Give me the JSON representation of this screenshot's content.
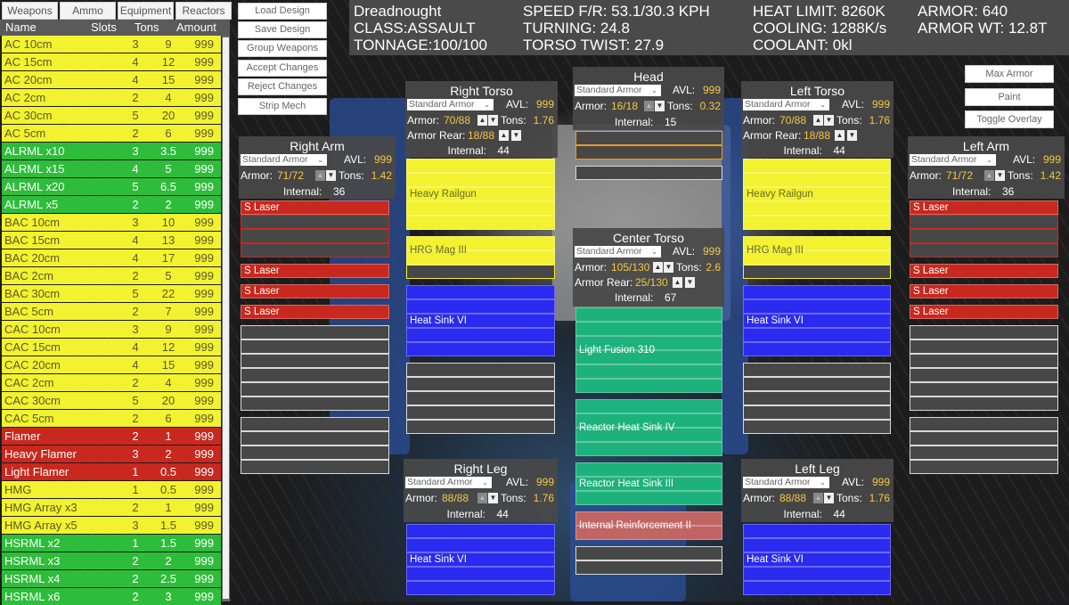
{
  "colors": {
    "ballistic": "#f2f230",
    "missile": "#2ebd3a",
    "energy": "#c8281e",
    "heatsink": "#2a2af0",
    "reactor": "#1db17e",
    "structure": "#c06464",
    "head": "#e8a020",
    "empty": "#d8d8d8",
    "value": "#f5c842"
  },
  "tabs": [
    "Weapons",
    "Ammo",
    "Equipment",
    "Reactors"
  ],
  "list": {
    "columns": [
      "Name",
      "Slots",
      "Tons",
      "Amount"
    ],
    "rows": [
      {
        "name": "AC 10cm",
        "slots": "3",
        "tons": "9",
        "amount": "999",
        "type": "ballistic"
      },
      {
        "name": "AC 15cm",
        "slots": "4",
        "tons": "12",
        "amount": "999",
        "type": "ballistic"
      },
      {
        "name": "AC 20cm",
        "slots": "4",
        "tons": "15",
        "amount": "999",
        "type": "ballistic"
      },
      {
        "name": "AC 2cm",
        "slots": "2",
        "tons": "4",
        "amount": "999",
        "type": "ballistic"
      },
      {
        "name": "AC 30cm",
        "slots": "5",
        "tons": "20",
        "amount": "999",
        "type": "ballistic"
      },
      {
        "name": "AC 5cm",
        "slots": "2",
        "tons": "6",
        "amount": "999",
        "type": "ballistic"
      },
      {
        "name": "ALRML x10",
        "slots": "3",
        "tons": "3.5",
        "amount": "999",
        "type": "missile"
      },
      {
        "name": "ALRML x15",
        "slots": "4",
        "tons": "5",
        "amount": "999",
        "type": "missile"
      },
      {
        "name": "ALRML x20",
        "slots": "5",
        "tons": "6.5",
        "amount": "999",
        "type": "missile"
      },
      {
        "name": "ALRML x5",
        "slots": "2",
        "tons": "2",
        "amount": "999",
        "type": "missile"
      },
      {
        "name": "BAC 10cm",
        "slots": "3",
        "tons": "10",
        "amount": "999",
        "type": "ballistic"
      },
      {
        "name": "BAC 15cm",
        "slots": "4",
        "tons": "13",
        "amount": "999",
        "type": "ballistic"
      },
      {
        "name": "BAC 20cm",
        "slots": "4",
        "tons": "17",
        "amount": "999",
        "type": "ballistic"
      },
      {
        "name": "BAC 2cm",
        "slots": "2",
        "tons": "5",
        "amount": "999",
        "type": "ballistic"
      },
      {
        "name": "BAC 30cm",
        "slots": "5",
        "tons": "22",
        "amount": "999",
        "type": "ballistic"
      },
      {
        "name": "BAC 5cm",
        "slots": "2",
        "tons": "7",
        "amount": "999",
        "type": "ballistic"
      },
      {
        "name": "CAC 10cm",
        "slots": "3",
        "tons": "9",
        "amount": "999",
        "type": "ballistic"
      },
      {
        "name": "CAC 15cm",
        "slots": "4",
        "tons": "12",
        "amount": "999",
        "type": "ballistic"
      },
      {
        "name": "CAC 20cm",
        "slots": "4",
        "tons": "15",
        "amount": "999",
        "type": "ballistic"
      },
      {
        "name": "CAC 2cm",
        "slots": "2",
        "tons": "4",
        "amount": "999",
        "type": "ballistic"
      },
      {
        "name": "CAC 30cm",
        "slots": "5",
        "tons": "20",
        "amount": "999",
        "type": "ballistic"
      },
      {
        "name": "CAC 5cm",
        "slots": "2",
        "tons": "6",
        "amount": "999",
        "type": "ballistic"
      },
      {
        "name": "Flamer",
        "slots": "2",
        "tons": "1",
        "amount": "999",
        "type": "energy"
      },
      {
        "name": "Heavy Flamer",
        "slots": "3",
        "tons": "2",
        "amount": "999",
        "type": "energy"
      },
      {
        "name": "Light Flamer",
        "slots": "1",
        "tons": "0.5",
        "amount": "999",
        "type": "energy"
      },
      {
        "name": "HMG",
        "slots": "1",
        "tons": "0.5",
        "amount": "999",
        "type": "ballistic"
      },
      {
        "name": "HMG Array x3",
        "slots": "2",
        "tons": "1",
        "amount": "999",
        "type": "ballistic"
      },
      {
        "name": "HMG Array x5",
        "slots": "3",
        "tons": "1.5",
        "amount": "999",
        "type": "ballistic"
      },
      {
        "name": "HSRML x2",
        "slots": "1",
        "tons": "1.5",
        "amount": "999",
        "type": "missile"
      },
      {
        "name": "HSRML x3",
        "slots": "2",
        "tons": "2",
        "amount": "999",
        "type": "missile"
      },
      {
        "name": "HSRML x4",
        "slots": "2",
        "tons": "2.5",
        "amount": "999",
        "type": "missile"
      },
      {
        "name": "HSRML x6",
        "slots": "2",
        "tons": "3",
        "amount": "999",
        "type": "missile"
      }
    ]
  },
  "actions": [
    "Load Design",
    "Save Design",
    "Group Weapons",
    "Accept Changes",
    "Reject Changes",
    "Strip Mech"
  ],
  "side_actions": [
    "Max Armor",
    "Paint",
    "Toggle Overlay"
  ],
  "stats": {
    "name": "Dreadnought",
    "class": "CLASS:ASSAULT",
    "tonnage": "TONNAGE:100/100",
    "speed": "SPEED F/R: 53.1/30.3 KPH",
    "turning": "TURNING: 24.8",
    "twist": "TORSO TWIST: 27.9",
    "heat_limit": "HEAT LIMIT: 8260K",
    "cooling": "COOLING: 1288K/s",
    "coolant": "COOLANT: 0kl",
    "armor": "ARMOR: 640",
    "armor_wt": "ARMOR WT: 12.8T"
  },
  "labels": {
    "avl": "AVL:",
    "armor": "Armor:",
    "armor_rear": "Armor Rear:",
    "tons": "Tons:",
    "internal": "Internal:"
  },
  "sections": [
    {
      "id": "right-arm",
      "title": "Right Arm",
      "armor_type": "Standard Armor",
      "avl": "999",
      "armor": "71/72",
      "tons": "1.42",
      "internal": "36",
      "up_enabled": false,
      "groups": [
        {
          "label": "S Laser",
          "type": "energy",
          "slots": 4,
          "filled": 1
        },
        {
          "label": "S Laser",
          "type": "energy",
          "slots": 1,
          "filled": 1
        },
        {
          "label": "S Laser",
          "type": "energy",
          "slots": 1,
          "filled": 1
        },
        {
          "label": "S Laser",
          "type": "energy",
          "slots": 1,
          "filled": 1
        },
        {
          "label": "",
          "type": "empty",
          "slots": 6,
          "filled": 0
        },
        {
          "label": "",
          "type": "empty",
          "slots": 4,
          "filled": 0
        }
      ]
    },
    {
      "id": "right-torso",
      "title": "Right Torso",
      "armor_type": "Standard Armor",
      "avl": "999",
      "armor": "70/88",
      "tons": "1.76",
      "armor_rear": "18/88",
      "internal": "44",
      "up_enabled": true,
      "groups": [
        {
          "label": "Heavy Railgun",
          "type": "ballistic",
          "slots": 5,
          "filled": 5
        },
        {
          "label": "HRG Mag III",
          "type": "ballistic",
          "slots": 3,
          "filled": 2
        },
        {
          "label": "Heat Sink VI",
          "type": "heatsink",
          "slots": 5,
          "filled": 5
        },
        {
          "label": "",
          "type": "empty",
          "slots": 5,
          "filled": 0
        }
      ]
    },
    {
      "id": "head",
      "title": "Head",
      "armor_type": "Standard Armor",
      "avl": "999",
      "armor": "16/18",
      "tons": "0.32",
      "internal": "15",
      "up_enabled": false,
      "groups": [
        {
          "label": "",
          "type": "head",
          "slots": 2,
          "filled": 0
        },
        {
          "label": "",
          "type": "empty",
          "slots": 1,
          "filled": 0
        }
      ]
    },
    {
      "id": "center-torso",
      "title": "Center Torso",
      "armor_type": "Standard Armor",
      "avl": "999",
      "armor": "105/130",
      "tons": "2.6",
      "armor_rear": "25/130",
      "internal": "67",
      "up_enabled": true,
      "groups": [
        {
          "label": "Light Fusion 310",
          "type": "reactor",
          "slots": 6,
          "filled": 6
        },
        {
          "label": "Reactor Heat Sink IV",
          "type": "reactor",
          "slots": 4,
          "filled": 4
        },
        {
          "label": "Reactor Heat Sink III",
          "type": "reactor",
          "slots": 3,
          "filled": 3
        },
        {
          "label": "Internal Reinforcement II",
          "type": "structure",
          "slots": 2,
          "filled": 2
        },
        {
          "label": "",
          "type": "empty",
          "slots": 2,
          "filled": 0
        }
      ]
    },
    {
      "id": "left-torso",
      "title": "Left Torso",
      "armor_type": "Standard Armor",
      "avl": "999",
      "armor": "70/88",
      "tons": "1.76",
      "armor_rear": "18/88",
      "internal": "44",
      "up_enabled": true,
      "groups": [
        {
          "label": "Heavy Railgun",
          "type": "ballistic",
          "slots": 5,
          "filled": 5
        },
        {
          "label": "HRG Mag III",
          "type": "ballistic",
          "slots": 3,
          "filled": 2
        },
        {
          "label": "Heat Sink VI",
          "type": "heatsink",
          "slots": 5,
          "filled": 5
        },
        {
          "label": "",
          "type": "empty",
          "slots": 5,
          "filled": 0
        }
      ]
    },
    {
      "id": "left-arm",
      "title": "Left Arm",
      "armor_type": "Standard Armor",
      "avl": "999",
      "armor": "71/72",
      "tons": "1.42",
      "internal": "36",
      "up_enabled": false,
      "groups": [
        {
          "label": "S Laser",
          "type": "energy",
          "slots": 4,
          "filled": 1
        },
        {
          "label": "S Laser",
          "type": "energy",
          "slots": 1,
          "filled": 1
        },
        {
          "label": "S Laser",
          "type": "energy",
          "slots": 1,
          "filled": 1
        },
        {
          "label": "S Laser",
          "type": "energy",
          "slots": 1,
          "filled": 1
        },
        {
          "label": "",
          "type": "empty",
          "slots": 6,
          "filled": 0
        },
        {
          "label": "",
          "type": "empty",
          "slots": 4,
          "filled": 0
        }
      ]
    },
    {
      "id": "right-leg",
      "title": "Right Leg",
      "armor_type": "Standard Armor",
      "avl": "999",
      "armor": "88/88",
      "tons": "1.76",
      "internal": "44",
      "up_enabled": false,
      "groups": [
        {
          "label": "Heat Sink VI",
          "type": "heatsink",
          "slots": 5,
          "filled": 5
        }
      ]
    },
    {
      "id": "left-leg",
      "title": "Left Leg",
      "armor_type": "Standard Armor",
      "avl": "999",
      "armor": "88/88",
      "tons": "1.76",
      "internal": "44",
      "up_enabled": false,
      "groups": [
        {
          "label": "Heat Sink VI",
          "type": "heatsink",
          "slots": 5,
          "filled": 5
        }
      ]
    }
  ]
}
